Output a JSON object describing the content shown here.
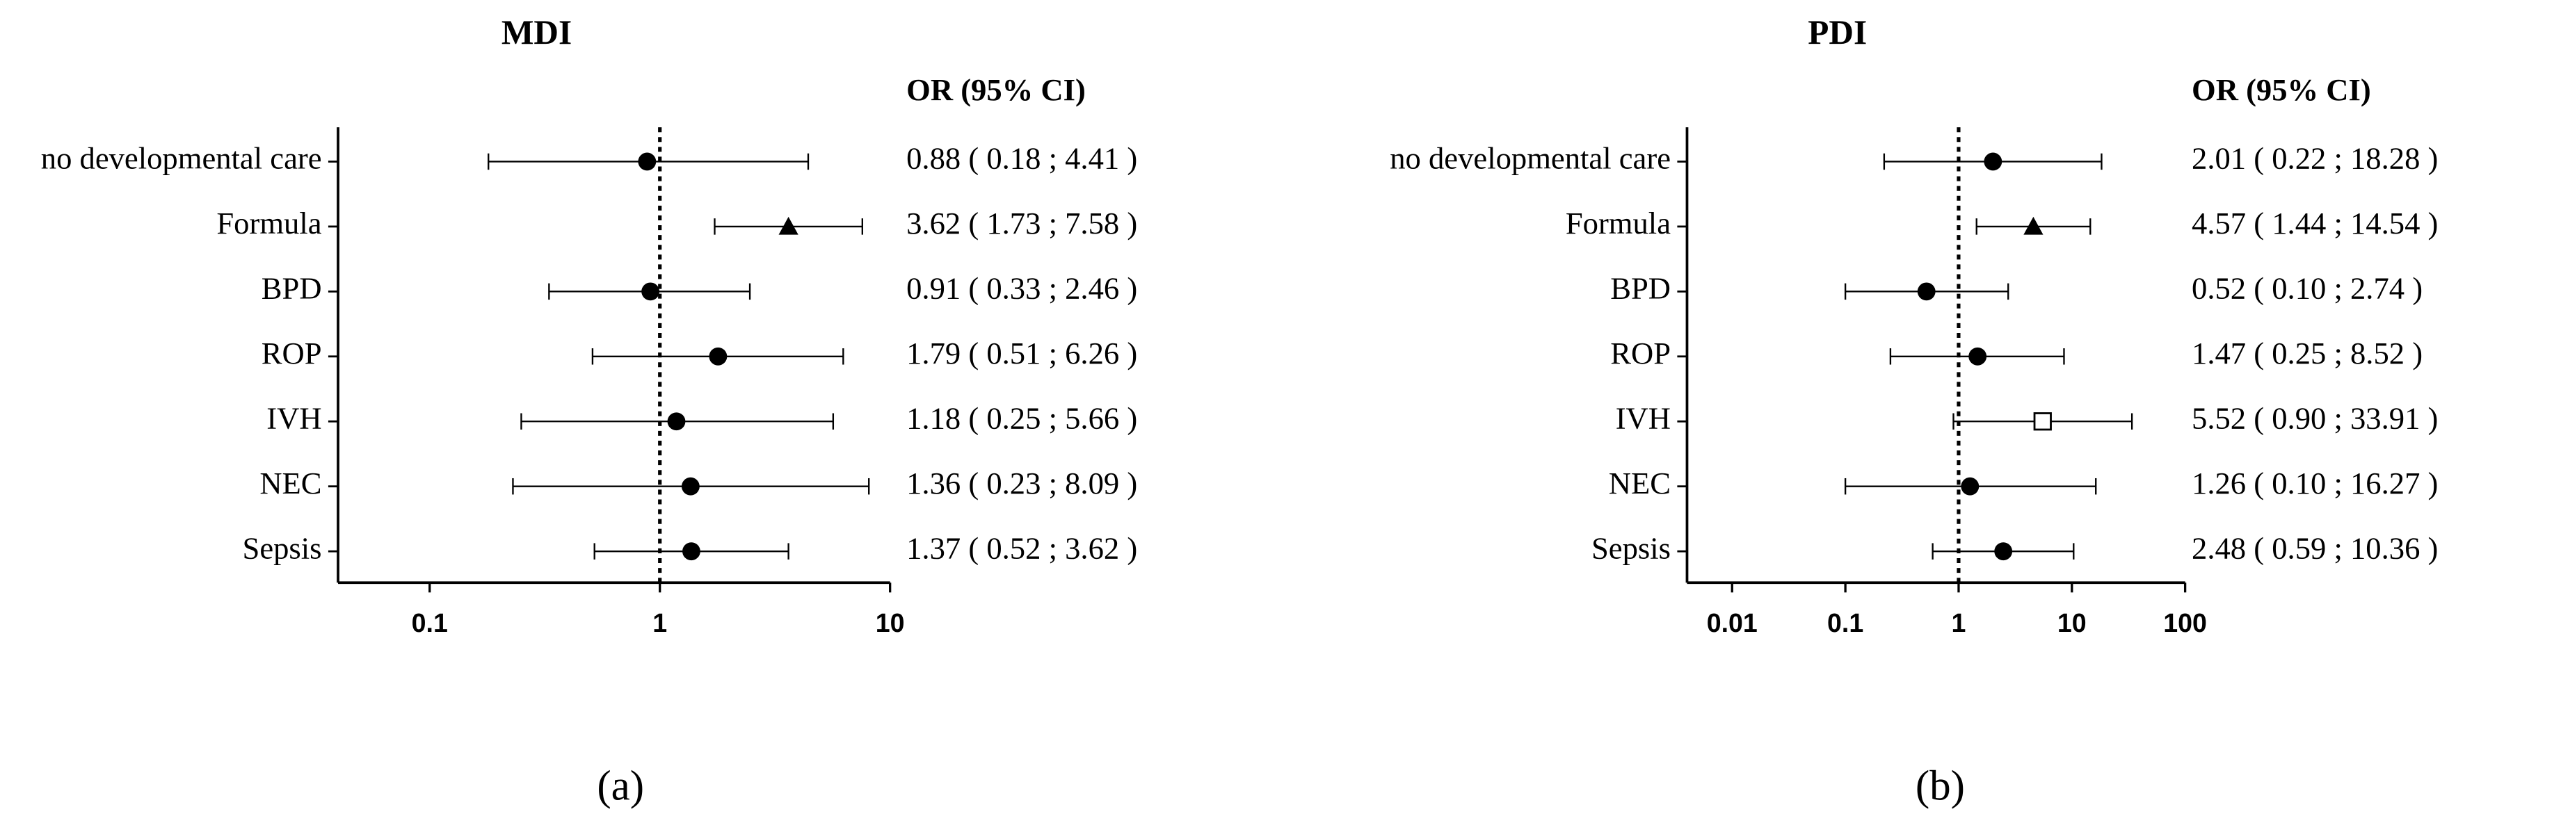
{
  "chart_data": [
    {
      "type": "forest",
      "title": "MDI",
      "column_header": "OR (95% CI)",
      "panel_label": "(a)",
      "categories": [
        "no developmental care",
        "Formula",
        "BPD",
        "ROP",
        "IVH",
        "NEC",
        "Sepsis"
      ],
      "values": [
        0.88,
        3.62,
        0.91,
        1.79,
        1.18,
        1.36,
        1.37
      ],
      "lower": [
        0.18,
        1.73,
        0.33,
        0.51,
        0.25,
        0.23,
        0.52
      ],
      "upper": [
        4.41,
        7.58,
        2.46,
        6.26,
        5.66,
        8.09,
        3.62
      ],
      "value_labels": [
        "0.88 ( 0.18 ; 4.41 )",
        "3.62 ( 1.73 ; 7.58 )",
        "0.91 ( 0.33 ; 2.46 )",
        "1.79 ( 0.51 ; 6.26 )",
        "1.18 ( 0.25 ; 5.66 )",
        "1.36 ( 0.23 ; 8.09 )",
        "1.37 ( 0.52 ; 3.62 )"
      ],
      "markers": [
        "circle",
        "triangle",
        "circle",
        "circle",
        "circle",
        "circle",
        "circle"
      ],
      "color": "#000000",
      "xscale": "log",
      "xlim": [
        0.04,
        10
      ],
      "xticks": [
        0.1,
        1,
        10
      ],
      "reference_line": 1
    },
    {
      "type": "forest",
      "title": "PDI",
      "column_header": "OR (95% CI)",
      "panel_label": "(b)",
      "categories": [
        "no developmental care",
        "Formula",
        "BPD",
        "ROP",
        "IVH",
        "NEC",
        "Sepsis"
      ],
      "values": [
        2.01,
        4.57,
        0.52,
        1.47,
        5.52,
        1.26,
        2.48
      ],
      "lower": [
        0.22,
        1.44,
        0.1,
        0.25,
        0.9,
        0.1,
        0.59
      ],
      "upper": [
        18.28,
        14.54,
        2.74,
        8.52,
        33.91,
        16.27,
        10.36
      ],
      "value_labels": [
        "2.01 ( 0.22 ; 18.28 )",
        "4.57 ( 1.44 ; 14.54 )",
        "0.52 ( 0.10 ; 2.74 )",
        "1.47 ( 0.25 ; 8.52 )",
        "5.52 ( 0.90 ; 33.91 )",
        "1.26 ( 0.10 ; 16.27 )",
        "2.48 ( 0.59 ; 10.36 )"
      ],
      "markers": [
        "circle",
        "triangle",
        "circle",
        "circle",
        "open-square",
        "circle",
        "circle"
      ],
      "color": "#000000",
      "xscale": "log",
      "xlim": [
        0.004,
        100
      ],
      "xticks": [
        0.01,
        0.1,
        1,
        10,
        100
      ],
      "reference_line": 1
    }
  ]
}
